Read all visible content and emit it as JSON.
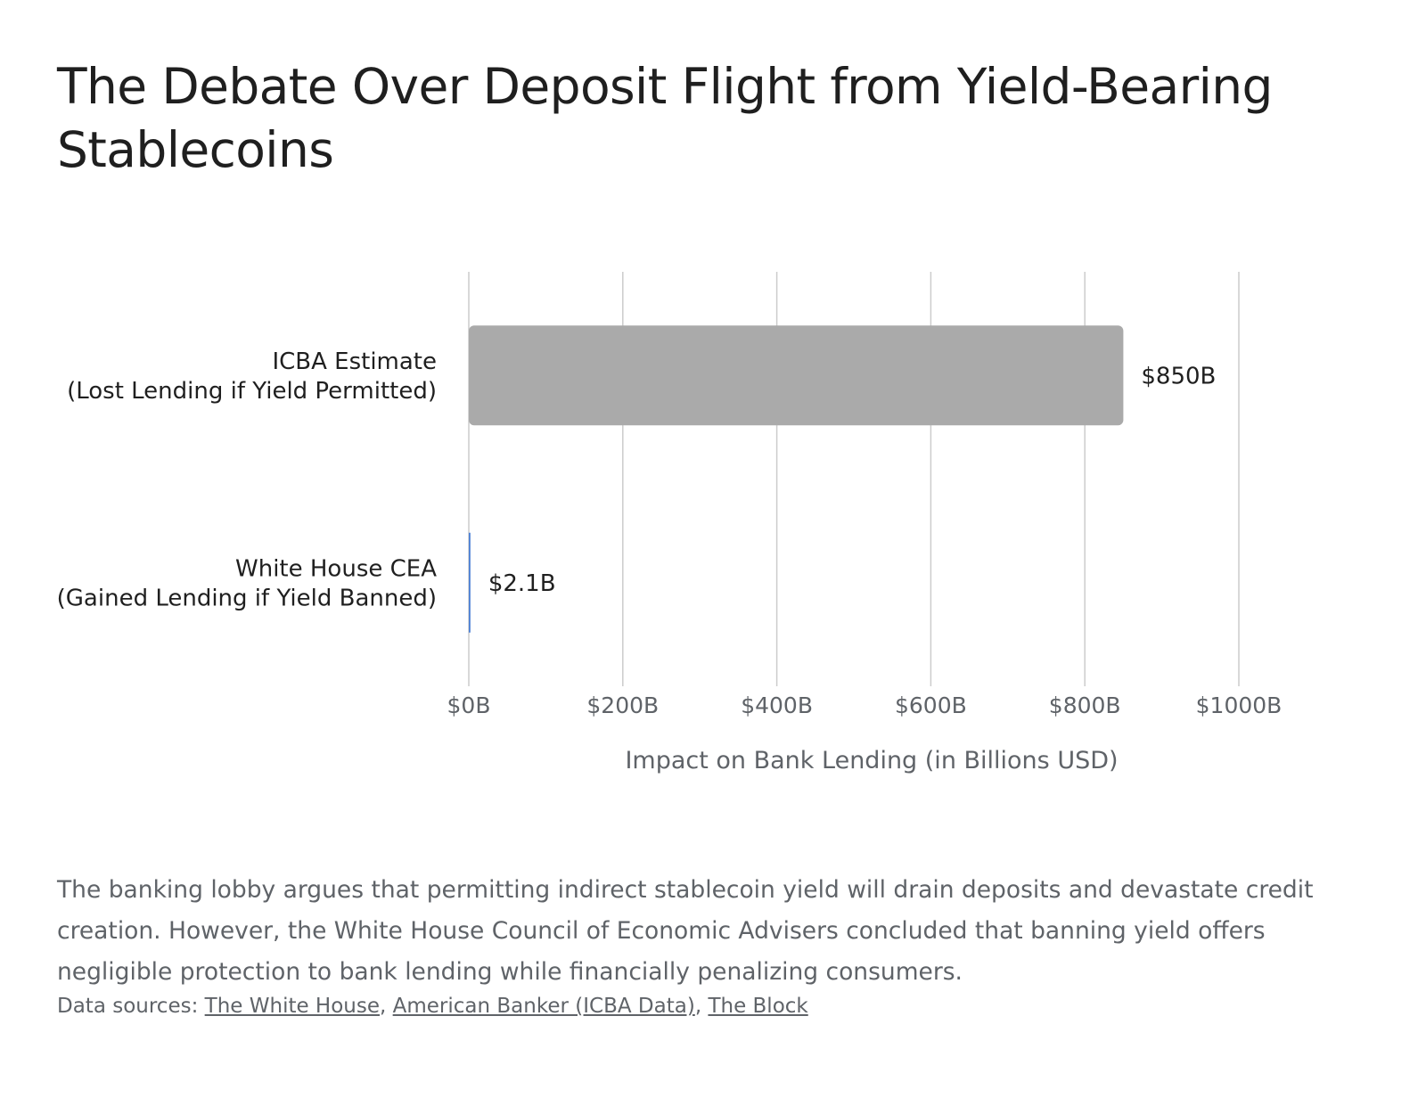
{
  "title": "The Debate Over Deposit Flight from Yield-Bearing Stablecoins",
  "chart_data": {
    "type": "bar",
    "orientation": "horizontal",
    "categories": [
      [
        "ICBA Estimate",
        "(Lost Lending if Yield Permitted)"
      ],
      [
        "White House CEA",
        "(Gained Lending if Yield Banned)"
      ]
    ],
    "values": [
      850,
      2.1
    ],
    "value_labels": [
      "$850B",
      "$2.1B"
    ],
    "bar_colors": [
      "#aaaaaa",
      "#4a7fd4"
    ],
    "xlabel": "Impact on Bank Lending (in Billions USD)",
    "xlim": [
      0,
      1000
    ],
    "x_ticks": [
      0,
      200,
      400,
      600,
      800,
      1000
    ],
    "x_tick_labels": [
      "$0B",
      "$200B",
      "$400B",
      "$600B",
      "$800B",
      "$1000B"
    ],
    "grid": true,
    "grid_color": "#cccccc"
  },
  "caption": "The banking lobby argues that permitting indirect stablecoin yield will drain deposits and devastate credit creation. However, the White House Council of Economic Advisers concluded that banning yield offers negligible protection to bank lending while financially penalizing consumers.",
  "sources": {
    "prefix": "Data sources: ",
    "links": [
      "The White House",
      "American Banker (ICBA Data)",
      "The Block"
    ],
    "separator": ", "
  }
}
